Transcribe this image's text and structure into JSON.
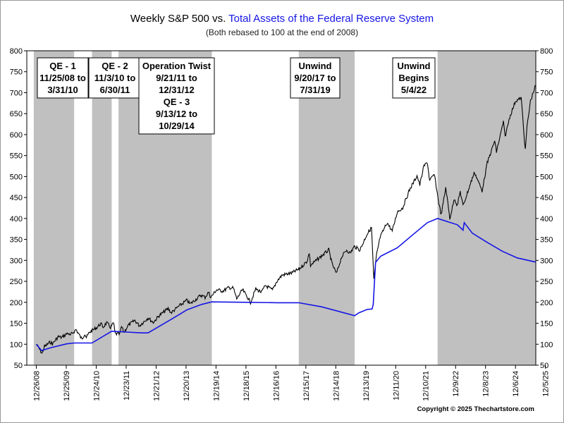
{
  "chart_data": {
    "type": "line",
    "title_part1": "Weekly S&P 500 vs. ",
    "title_part2": "Total Assets of the Federal Reserve System",
    "subtitle": "(Both rebased to 100 at the end of 2008)",
    "copyright": "Copyright © 2025 Thechartstore.com",
    "ylim": [
      50,
      800
    ],
    "y_ticks": [
      50,
      100,
      150,
      200,
      250,
      300,
      350,
      400,
      450,
      500,
      550,
      600,
      650,
      700,
      750,
      800
    ],
    "xlim": [
      "2008-09-01",
      "2025-08-10"
    ],
    "x_ticks": [
      {
        "label": "12/26/08",
        "date": "2008-12-26"
      },
      {
        "label": "12/25/09",
        "date": "2009-12-25"
      },
      {
        "label": "12/24/10",
        "date": "2010-12-24"
      },
      {
        "label": "12/23/11",
        "date": "2011-12-23"
      },
      {
        "label": "12/21/12",
        "date": "2012-12-21"
      },
      {
        "label": "12/20/13",
        "date": "2013-12-20"
      },
      {
        "label": "12/19/14",
        "date": "2014-12-19"
      },
      {
        "label": "12/18/15",
        "date": "2015-12-18"
      },
      {
        "label": "12/16/16",
        "date": "2016-12-16"
      },
      {
        "label": "12/15/17",
        "date": "2017-12-15"
      },
      {
        "label": "12/14/18",
        "date": "2018-12-14"
      },
      {
        "label": "12/13/19",
        "date": "2019-12-13"
      },
      {
        "label": "12/11/20",
        "date": "2020-12-11"
      },
      {
        "label": "12/10/21",
        "date": "2021-12-10"
      },
      {
        "label": "12/9/22",
        "date": "2022-12-09"
      },
      {
        "label": "12/8/23",
        "date": "2023-12-08"
      },
      {
        "label": "12/6/24",
        "date": "2024-12-06"
      },
      {
        "label": "12/5/25",
        "date": "2025-12-05"
      }
    ],
    "shaded_periods": [
      {
        "start": "2008-11-25",
        "end": "2010-03-31",
        "lines": [
          "QE - 1",
          "11/25/08 to",
          "3/31/10"
        ]
      },
      {
        "start": "2010-11-03",
        "end": "2011-06-30",
        "lines": [
          "QE - 2",
          "11/3/10 to",
          "6/30/11"
        ]
      },
      {
        "start": "2011-09-21",
        "end": "2014-10-29",
        "lines": [
          "Operation Twist",
          "9/21/11 to",
          "12/31/12",
          "QE - 3",
          "9/13/12 to",
          "10/29/14"
        ]
      },
      {
        "start": "2017-09-20",
        "end": "2019-07-31",
        "lines": [
          "Unwind",
          "9/20/17 to",
          "7/31/19"
        ]
      },
      {
        "start": "2022-05-04",
        "end": "2025-08-10",
        "lines": [
          "Unwind",
          "Begins",
          "5/4/22"
        ]
      }
    ],
    "series": [
      {
        "name": "S&P 500",
        "color": "#000000",
        "points": [
          [
            "2008-12-26",
            100
          ],
          [
            "2009-03-06",
            78
          ],
          [
            "2009-04-03",
            94
          ],
          [
            "2009-06-12",
            105
          ],
          [
            "2009-07-10",
            101
          ],
          [
            "2009-09-18",
            118
          ],
          [
            "2009-10-30",
            116
          ],
          [
            "2010-01-15",
            127
          ],
          [
            "2010-02-05",
            120
          ],
          [
            "2010-04-23",
            135
          ],
          [
            "2010-07-02",
            112
          ],
          [
            "2010-08-06",
            125
          ],
          [
            "2010-08-27",
            116
          ],
          [
            "2010-10-01",
            128
          ],
          [
            "2010-12-31",
            140
          ],
          [
            "2011-02-18",
            149
          ],
          [
            "2011-03-18",
            141
          ],
          [
            "2011-04-29",
            151
          ],
          [
            "2011-06-17",
            140
          ],
          [
            "2011-07-22",
            151
          ],
          [
            "2011-08-12",
            125
          ],
          [
            "2011-10-07",
            124
          ],
          [
            "2011-10-28",
            142
          ],
          [
            "2011-11-25",
            128
          ],
          [
            "2012-01-13",
            144
          ],
          [
            "2012-04-06",
            157
          ],
          [
            "2012-06-01",
            144
          ],
          [
            "2012-09-14",
            163
          ],
          [
            "2012-11-16",
            152
          ],
          [
            "2013-01-25",
            168
          ],
          [
            "2013-05-17",
            185
          ],
          [
            "2013-06-21",
            175
          ],
          [
            "2013-09-20",
            190
          ],
          [
            "2013-12-31",
            205
          ],
          [
            "2014-02-07",
            196
          ],
          [
            "2014-06-20",
            217
          ],
          [
            "2014-08-08",
            212
          ],
          [
            "2014-09-19",
            224
          ],
          [
            "2014-10-17",
            212
          ],
          [
            "2014-12-26",
            230
          ],
          [
            "2015-03-13",
            227
          ],
          [
            "2015-05-22",
            235
          ],
          [
            "2015-07-17",
            234
          ],
          [
            "2015-08-28",
            208
          ],
          [
            "2015-11-06",
            230
          ],
          [
            "2016-01-22",
            207
          ],
          [
            "2016-02-12",
            200
          ],
          [
            "2016-04-15",
            232
          ],
          [
            "2016-06-24",
            224
          ],
          [
            "2016-08-12",
            240
          ],
          [
            "2016-11-04",
            229
          ],
          [
            "2016-12-30",
            251
          ],
          [
            "2017-03-03",
            265
          ],
          [
            "2017-06-30",
            270
          ],
          [
            "2017-09-29",
            280
          ],
          [
            "2017-12-29",
            298
          ],
          [
            "2018-01-26",
            318
          ],
          [
            "2018-02-09",
            288
          ],
          [
            "2018-06-15",
            309
          ],
          [
            "2018-09-21",
            325
          ],
          [
            "2018-10-26",
            294
          ],
          [
            "2018-12-21",
            268
          ],
          [
            "2019-02-22",
            308
          ],
          [
            "2019-04-26",
            325
          ],
          [
            "2019-06-07",
            317
          ],
          [
            "2019-07-26",
            333
          ],
          [
            "2019-10-04",
            325
          ],
          [
            "2019-12-27",
            362
          ],
          [
            "2020-02-21",
            378
          ],
          [
            "2020-03-20",
            255
          ],
          [
            "2020-04-24",
            315
          ],
          [
            "2020-06-05",
            355
          ],
          [
            "2020-08-28",
            390
          ],
          [
            "2020-10-30",
            370
          ],
          [
            "2020-12-31",
            416
          ],
          [
            "2021-03-05",
            425
          ],
          [
            "2021-05-28",
            468
          ],
          [
            "2021-08-27",
            502
          ],
          [
            "2021-09-30",
            480
          ],
          [
            "2021-11-19",
            525
          ],
          [
            "2021-12-31",
            534
          ],
          [
            "2022-01-28",
            490
          ],
          [
            "2022-03-25",
            505
          ],
          [
            "2022-05-20",
            436
          ],
          [
            "2022-06-17",
            408
          ],
          [
            "2022-08-12",
            474
          ],
          [
            "2022-09-30",
            400
          ],
          [
            "2022-11-25",
            448
          ],
          [
            "2022-12-30",
            431
          ],
          [
            "2023-02-03",
            464
          ],
          [
            "2023-03-10",
            430
          ],
          [
            "2023-06-30",
            496
          ],
          [
            "2023-07-28",
            510
          ],
          [
            "2023-10-27",
            466
          ],
          [
            "2023-12-29",
            532
          ],
          [
            "2024-03-28",
            585
          ],
          [
            "2024-04-19",
            559
          ],
          [
            "2024-07-12",
            630
          ],
          [
            "2024-08-02",
            595
          ],
          [
            "2024-09-27",
            642
          ],
          [
            "2024-12-06",
            680
          ],
          [
            "2025-02-14",
            687
          ],
          [
            "2025-04-04",
            562
          ],
          [
            "2025-04-25",
            618
          ],
          [
            "2025-06-06",
            680
          ],
          [
            "2025-07-25",
            710
          ],
          [
            "2025-08-08",
            716
          ]
        ]
      },
      {
        "name": "Total Assets of the Federal Reserve System",
        "color": "#1515e6",
        "points": [
          [
            "2008-12-26",
            100
          ],
          [
            "2009-02-27",
            85
          ],
          [
            "2009-06-26",
            92
          ],
          [
            "2009-12-31",
            101
          ],
          [
            "2010-03-31",
            103
          ],
          [
            "2010-11-03",
            103
          ],
          [
            "2011-06-30",
            131
          ],
          [
            "2011-12-31",
            129
          ],
          [
            "2012-06-29",
            127
          ],
          [
            "2012-09-14",
            127
          ],
          [
            "2013-06-28",
            160
          ],
          [
            "2013-12-31",
            182
          ],
          [
            "2014-06-27",
            195
          ],
          [
            "2014-10-29",
            201
          ],
          [
            "2015-12-31",
            200
          ],
          [
            "2016-12-30",
            199
          ],
          [
            "2017-09-20",
            199
          ],
          [
            "2018-06-29",
            189
          ],
          [
            "2019-07-31",
            168
          ],
          [
            "2019-09-20",
            175
          ],
          [
            "2019-12-31",
            183
          ],
          [
            "2020-02-28",
            184
          ],
          [
            "2020-03-13",
            195
          ],
          [
            "2020-04-10",
            295
          ],
          [
            "2020-06-12",
            310
          ],
          [
            "2020-12-31",
            330
          ],
          [
            "2021-06-30",
            360
          ],
          [
            "2021-12-31",
            390
          ],
          [
            "2022-05-04",
            400
          ],
          [
            "2022-12-30",
            385
          ],
          [
            "2023-03-10",
            372
          ],
          [
            "2023-03-24",
            390
          ],
          [
            "2023-06-30",
            365
          ],
          [
            "2023-12-29",
            343
          ],
          [
            "2024-06-28",
            322
          ],
          [
            "2024-12-27",
            306
          ],
          [
            "2025-08-08",
            296
          ]
        ]
      }
    ]
  }
}
